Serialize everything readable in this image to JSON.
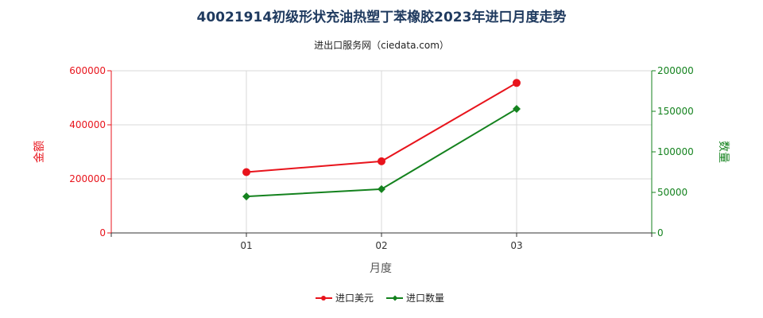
{
  "chart_data": {
    "type": "line",
    "title": "40021914初级形状充油热塑丁苯橡胶2023年进口月度走势",
    "subtitle": "进出口服务网（ciedata.com）",
    "xlabel": "月度",
    "ylabel_left": "金额",
    "ylabel_right": "数量",
    "categories": [
      "01",
      "02",
      "03"
    ],
    "ylim_left": [
      0,
      600000
    ],
    "ylim_right": [
      0,
      200000
    ],
    "yticks_left": [
      "0",
      "200000",
      "400000",
      "600000"
    ],
    "yticks_right": [
      "0",
      "50000",
      "100000",
      "150000",
      "200000"
    ],
    "grid": true,
    "legend_position": "bottom",
    "series": [
      {
        "name": "进口美元",
        "axis": "left",
        "color": "#e8141c",
        "marker": "circle",
        "values": [
          225000,
          265000,
          555000
        ]
      },
      {
        "name": "进口数量",
        "axis": "right",
        "color": "#14821e",
        "marker": "diamond",
        "values": [
          45000,
          54000,
          153000
        ]
      }
    ]
  }
}
